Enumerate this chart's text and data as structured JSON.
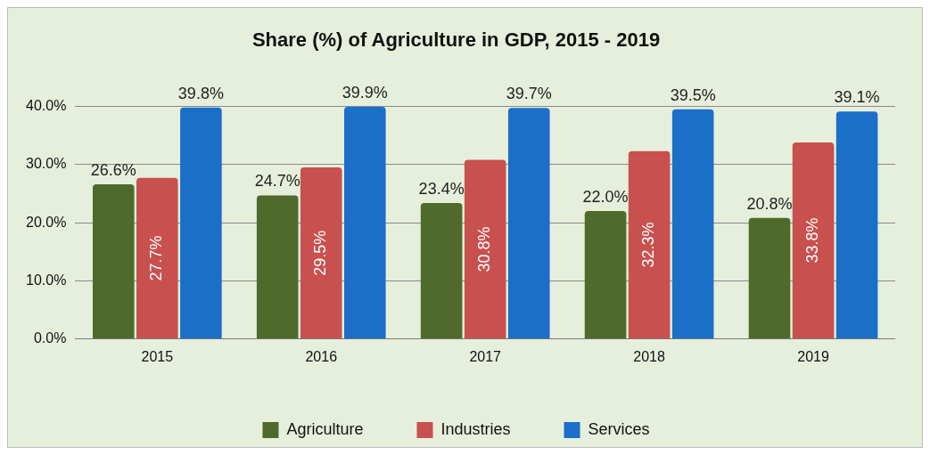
{
  "chart_data": {
    "type": "bar",
    "title": "Share (%) of Agriculture in GDP, 2015 - 2019",
    "categories": [
      "2015",
      "2016",
      "2017",
      "2018",
      "2019"
    ],
    "series": [
      {
        "name": "Agriculture",
        "color": "#4f6b2b",
        "values": [
          26.6,
          24.7,
          23.4,
          22.0,
          20.8
        ],
        "value_labels": [
          "26.6%",
          "24.7%",
          "23.4%",
          "22.0%",
          "20.8%"
        ]
      },
      {
        "name": "Industries",
        "color": "#c8504e",
        "values": [
          27.7,
          29.5,
          30.8,
          32.3,
          33.8
        ],
        "value_labels": [
          "27.7%",
          "29.5%",
          "30.8%",
          "32.3%",
          "33.8%"
        ]
      },
      {
        "name": "Services",
        "color": "#1c6fc9",
        "values": [
          39.8,
          39.9,
          39.7,
          39.5,
          39.1
        ],
        "value_labels": [
          "39.8%",
          "39.9%",
          "39.7%",
          "39.5%",
          "39.1%"
        ]
      }
    ],
    "ylim": [
      0,
      40
    ],
    "yticks": [
      {
        "value": 0,
        "label": "0.0%"
      },
      {
        "value": 10,
        "label": "10.0%"
      },
      {
        "value": 20,
        "label": "20.0%"
      },
      {
        "value": 30,
        "label": "30.0%"
      },
      {
        "value": 40,
        "label": "40.0%"
      }
    ],
    "grid": "y",
    "legend": "bottom"
  }
}
